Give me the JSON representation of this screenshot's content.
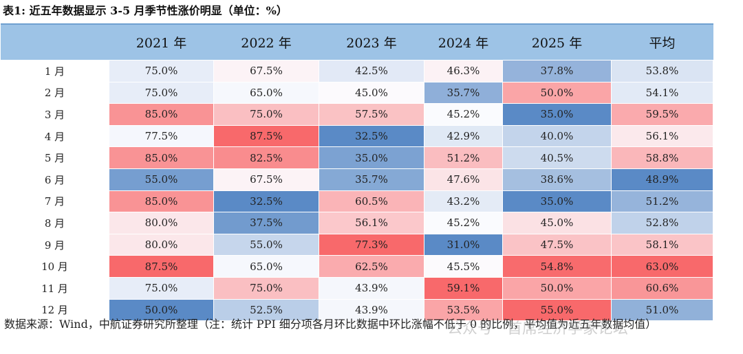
{
  "title": "表1: 近五年数据显示 3-5 月季节性涨价明显（单位：%）",
  "table": {
    "header": [
      "2021 年",
      "2022 年",
      "2023 年",
      "2024 年",
      "2025 年",
      "平均"
    ],
    "rows": [
      [
        "1 月",
        "75.0%",
        "67.5%",
        "42.5%",
        "46.3%",
        "37.8%",
        "53.8%"
      ],
      [
        "2 月",
        "75.0%",
        "65.0%",
        "45.0%",
        "35.7%",
        "50.0%",
        "54.1%"
      ],
      [
        "3 月",
        "85.0%",
        "75.0%",
        "57.5%",
        "45.2%",
        "35.0%",
        "59.5%"
      ],
      [
        "4 月",
        "77.5%",
        "87.5%",
        "32.5%",
        "42.9%",
        "40.0%",
        "56.1%"
      ],
      [
        "5 月",
        "85.0%",
        "82.5%",
        "35.0%",
        "51.2%",
        "40.5%",
        "58.8%"
      ],
      [
        "6 月",
        "55.0%",
        "67.5%",
        "35.7%",
        "47.6%",
        "38.6%",
        "48.9%"
      ],
      [
        "7 月",
        "85.0%",
        "32.5%",
        "60.5%",
        "43.2%",
        "35.0%",
        "51.2%"
      ],
      [
        "8 月",
        "80.0%",
        "37.5%",
        "56.1%",
        "45.2%",
        "45.0%",
        "52.8%"
      ],
      [
        "9 月",
        "80.0%",
        "55.0%",
        "77.3%",
        "31.0%",
        "47.5%",
        "58.1%"
      ],
      [
        "10 月",
        "87.5%",
        "65.0%",
        "62.5%",
        "45.5%",
        "54.8%",
        "63.0%"
      ],
      [
        "11 月",
        "75.0%",
        "75.0%",
        "43.9%",
        "59.1%",
        "50.0%",
        "60.6%"
      ],
      [
        "12 月",
        "50.0%",
        "52.5%",
        "43.9%",
        "53.5%",
        "55.0%",
        "51.0%"
      ]
    ]
  },
  "footer": "数据来源：Wind，中航证券研究所整理（注：统计 PPI 细分项各月环比数据中环比涨幅不低于 0 的比例，平均值为近五年数据均值）",
  "watermark": "公众号 · 首席经济学家论坛"
}
